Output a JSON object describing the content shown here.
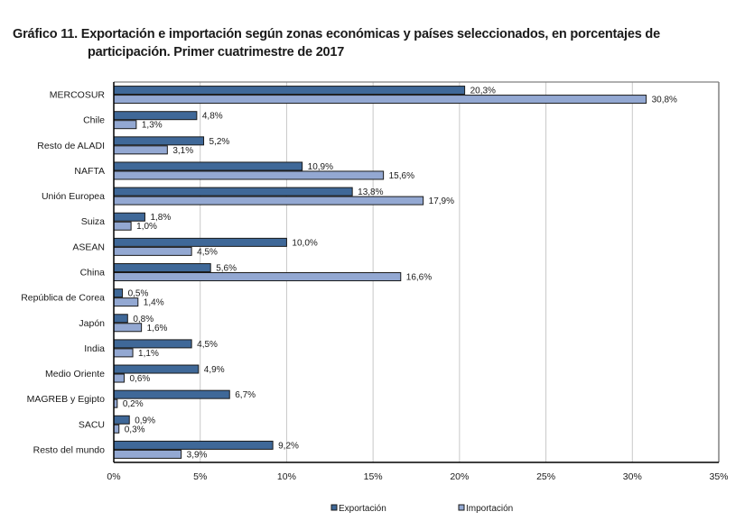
{
  "chart_data": {
    "type": "bar",
    "orientation": "horizontal",
    "title_line1": "Gráfico 11. Exportación e importación según zonas económicas y países seleccionados, en porcentajes de",
    "title_line2": "participación. Primer cuatrimestre de 2017",
    "xlabel": "",
    "ylabel": "",
    "xlim": [
      0,
      35
    ],
    "grid": true,
    "legend_position": "bottom",
    "categories": [
      "MERCOSUR",
      "Chile",
      "Resto de ALADI",
      "NAFTA",
      "Unión Europea",
      "Suiza",
      "ASEAN",
      "China",
      "República de Corea",
      "Japón",
      "India",
      "Medio Oriente",
      "MAGREB y Egipto",
      "SACU",
      "Resto del mundo"
    ],
    "series": [
      {
        "name": "Exportación",
        "color": "#3f6898",
        "values": [
          20.3,
          4.8,
          5.2,
          10.9,
          13.8,
          1.8,
          10.0,
          5.6,
          0.5,
          0.8,
          4.5,
          4.9,
          6.7,
          0.9,
          9.2
        ],
        "labels": [
          "20,3%",
          "4,8%",
          "5,2%",
          "10,9%",
          "13,8%",
          "1,8%",
          "10,0%",
          "5,6%",
          "0,5%",
          "0,8%",
          "4,5%",
          "4,9%",
          "6,7%",
          "0,9%",
          "9,2%"
        ]
      },
      {
        "name": "Importación",
        "color": "#93a8d2",
        "values": [
          30.8,
          1.3,
          3.1,
          15.6,
          17.9,
          1.0,
          4.5,
          16.6,
          1.4,
          1.6,
          1.1,
          0.6,
          0.2,
          0.3,
          3.9
        ],
        "labels": [
          "30,8%",
          "1,3%",
          "3,1%",
          "15,6%",
          "17,9%",
          "1,0%",
          "4,5%",
          "16,6%",
          "1,4%",
          "1,6%",
          "1,1%",
          "0,6%",
          "0,2%",
          "0,3%",
          "3,9%"
        ]
      }
    ],
    "ticks": [
      0,
      5,
      10,
      15,
      20,
      25,
      30,
      35
    ],
    "tick_labels": [
      "0%",
      "5%",
      "10%",
      "15%",
      "20%",
      "25%",
      "30%",
      "35%"
    ]
  }
}
